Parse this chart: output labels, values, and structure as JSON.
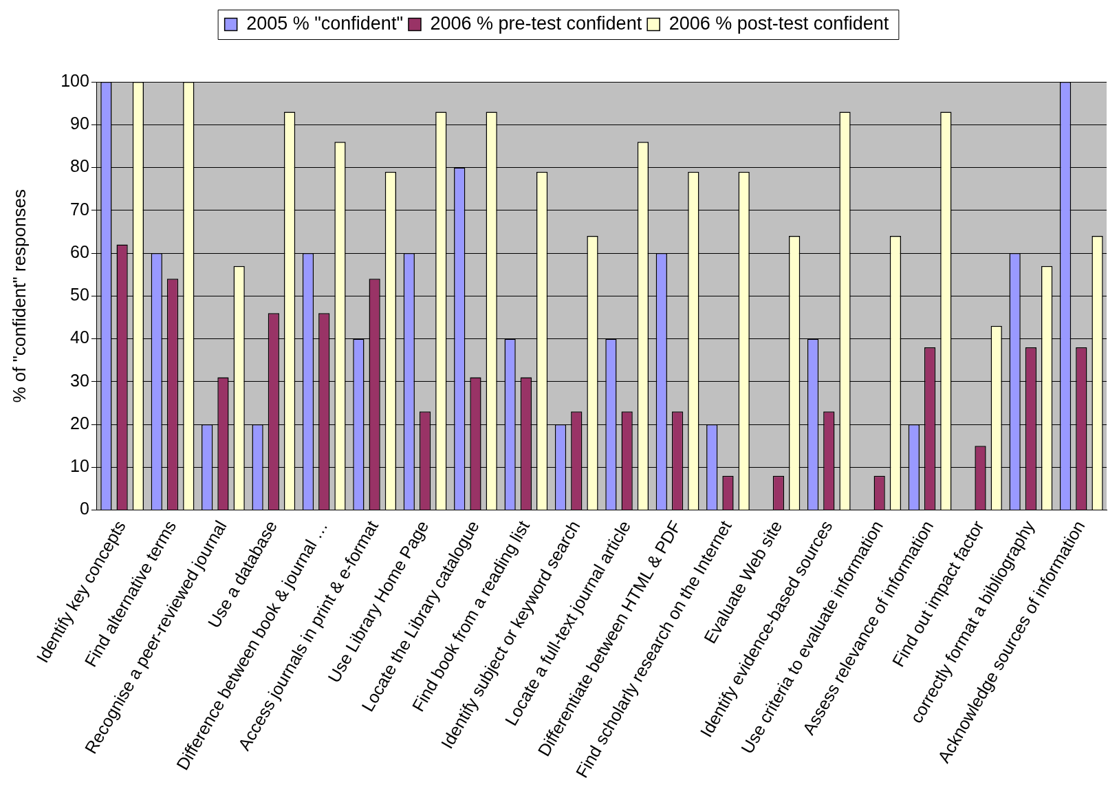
{
  "chart_data": {
    "type": "bar",
    "ylabel": "% of \"confident\" responses",
    "categories": [
      "Identify key concepts",
      "Find alternative terms",
      "Recognise a peer-reviewed journal",
      "Use a database",
      "Difference between book & journal …",
      "Access journals in print & e-format",
      "Use Library Home Page",
      "Locate the Library catalogue",
      "Find book from a reading list",
      "Identify subject or keyword search",
      "Locate a full-text journal article",
      "Differentiate between HTML & PDF",
      "Find scholarly research on the Internet",
      "Evaluate Web site",
      "Identify evidence-based sources",
      "Use criteria to evaluate information",
      "Assess relevance of information",
      "Find out impact factor",
      "correctly format a bibliography",
      "Acknowledge sources of information"
    ],
    "series": [
      {
        "name": "2005 % \"confident\"",
        "color": "#9999ff",
        "values": [
          100,
          60,
          20,
          20,
          60,
          40,
          60,
          80,
          40,
          20,
          40,
          60,
          20,
          0,
          40,
          0,
          20,
          0,
          60,
          100
        ]
      },
      {
        "name": "2006 % pre-test confident",
        "color": "#993366",
        "values": [
          62,
          54,
          31,
          46,
          46,
          54,
          23,
          31,
          31,
          23,
          23,
          23,
          8,
          8,
          23,
          8,
          38,
          15,
          38,
          38
        ]
      },
      {
        "name": "2006 % post-test confident",
        "color": "#ffffcc",
        "values": [
          100,
          100,
          57,
          93,
          86,
          79,
          93,
          93,
          79,
          64,
          86,
          79,
          79,
          64,
          93,
          64,
          93,
          43,
          57,
          64
        ]
      }
    ],
    "ylim": [
      0,
      100
    ],
    "yticks": [
      0,
      10,
      20,
      30,
      40,
      50,
      60,
      70,
      80,
      90,
      100
    ],
    "grid": "y",
    "legend": "top"
  }
}
